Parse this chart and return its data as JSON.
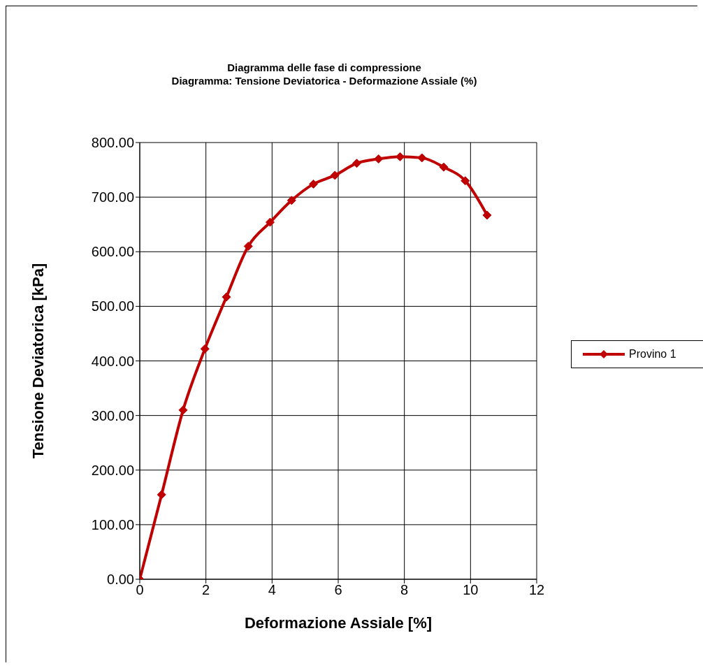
{
  "chart_data": {
    "type": "line",
    "title": "Diagramma delle fase di compressione",
    "subtitle": "Diagramma: Tensione Deviatorica - Deformazione Assiale (%)",
    "xlabel": "Deformazione Assiale [%]",
    "ylabel": "Tensione Deviatorica  [kPa]",
    "x": [
      0,
      0.66,
      1.31,
      1.97,
      2.62,
      3.28,
      3.94,
      4.59,
      5.25,
      5.9,
      6.56,
      7.22,
      7.87,
      8.53,
      9.19,
      9.84,
      10.5
    ],
    "series": [
      {
        "name": "Provino 1",
        "color": "#c00000",
        "values": [
          0,
          155,
          310,
          422,
          517,
          610,
          654,
          694,
          724,
          740,
          762,
          770,
          774,
          772,
          755,
          730,
          667
        ]
      }
    ],
    "xlim": [
      0,
      12
    ],
    "xticks": [
      0,
      2,
      4,
      6,
      8,
      10,
      12
    ],
    "ylim": [
      0,
      800
    ],
    "yticks": [
      {
        "value": 0,
        "label": "0.00"
      },
      {
        "value": 100,
        "label": "100.00"
      },
      {
        "value": 200,
        "label": "200.00"
      },
      {
        "value": 300,
        "label": "300.00"
      },
      {
        "value": 400,
        "label": "400.00"
      },
      {
        "value": 500,
        "label": "500.00"
      },
      {
        "value": 600,
        "label": "600.00"
      },
      {
        "value": 700,
        "label": "700.00"
      },
      {
        "value": 800,
        "label": "800.00"
      }
    ],
    "grid": true,
    "legend": "right",
    "marker": "diamond",
    "line_style": "solid"
  }
}
